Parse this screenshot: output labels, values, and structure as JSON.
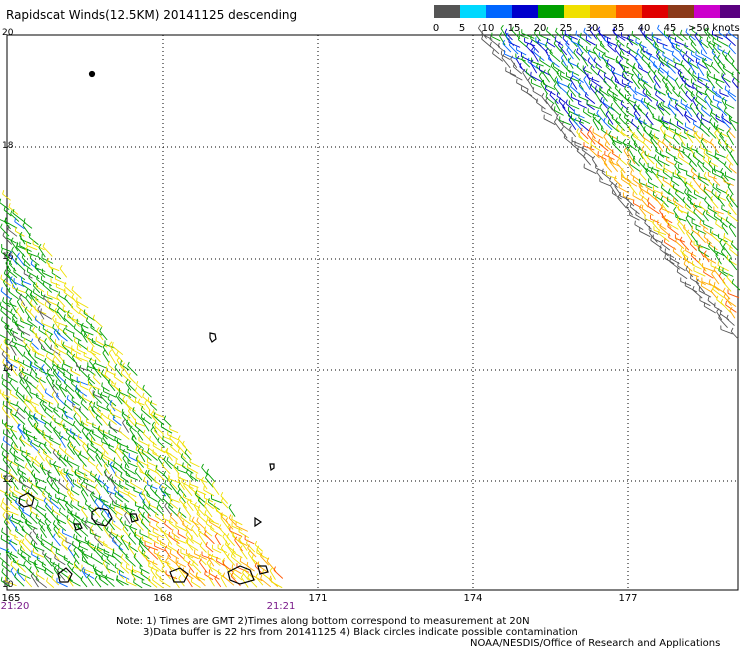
{
  "title": "Rapidscat Winds(12.5KM) 20141125 descending",
  "legend": {
    "labels": [
      "0",
      "5",
      "10",
      "15",
      "20",
      "25",
      "30",
      "35",
      "40",
      "45",
      ">50 knots"
    ],
    "colors": [
      "#555555",
      "#00d8ff",
      "#0066ff",
      "#0000cc",
      "#00a000",
      "#f0e000",
      "#ffaa00",
      "#ff5500",
      "#e00000",
      "#8b3a1a",
      "#cc00cc",
      "#5a0080"
    ]
  },
  "map": {
    "lat_labels": [
      "20",
      "18",
      "16",
      "14",
      "12",
      "10"
    ],
    "lon_labels": [
      "165",
      "168",
      "171",
      "174",
      "177"
    ],
    "time_labels": [
      "21:20",
      "21:21"
    ]
  },
  "notes": {
    "line1": "Note: 1) Times are GMT 2)Times along bottom correspond to measurement at 20N",
    "line2": "3)Data buffer is 22 hrs from 20141125 4) Black circles indicate possible contamination",
    "line3": "NOAA/NESDIS/Office of Research and Applications"
  }
}
